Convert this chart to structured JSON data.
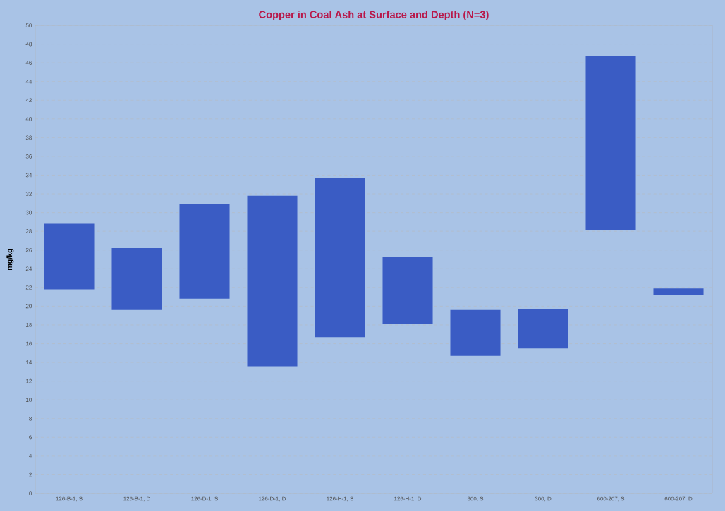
{
  "chart_data": {
    "type": "bar",
    "title": "Copper in Coal Ash at Surface and Depth (N=3)",
    "ylabel": "mg/kg",
    "categories": [
      "126-B-1, S",
      "126-B-1, D",
      "126-D-1, S",
      "126-D-1, D",
      "126-H-1, S",
      "126-H-1, D",
      "300, S",
      "300, D",
      "600-207, S",
      "600-207, D"
    ],
    "base": [
      21.8,
      19.6,
      20.8,
      13.6,
      16.7,
      18.1,
      14.7,
      15.5,
      28.1,
      21.2
    ],
    "values": [
      7.0,
      6.6,
      10.1,
      18.2,
      17.0,
      7.2,
      4.9,
      4.2,
      18.6,
      0.7
    ],
    "color": "#3a5cc4",
    "ylim": [
      0,
      50
    ],
    "yticks": [
      0,
      2,
      4,
      6,
      8,
      10,
      12,
      14,
      16,
      18,
      20,
      22,
      24,
      26,
      28,
      30,
      32,
      34,
      36,
      38,
      40,
      42,
      44,
      46,
      48,
      50
    ],
    "grid": "y"
  }
}
